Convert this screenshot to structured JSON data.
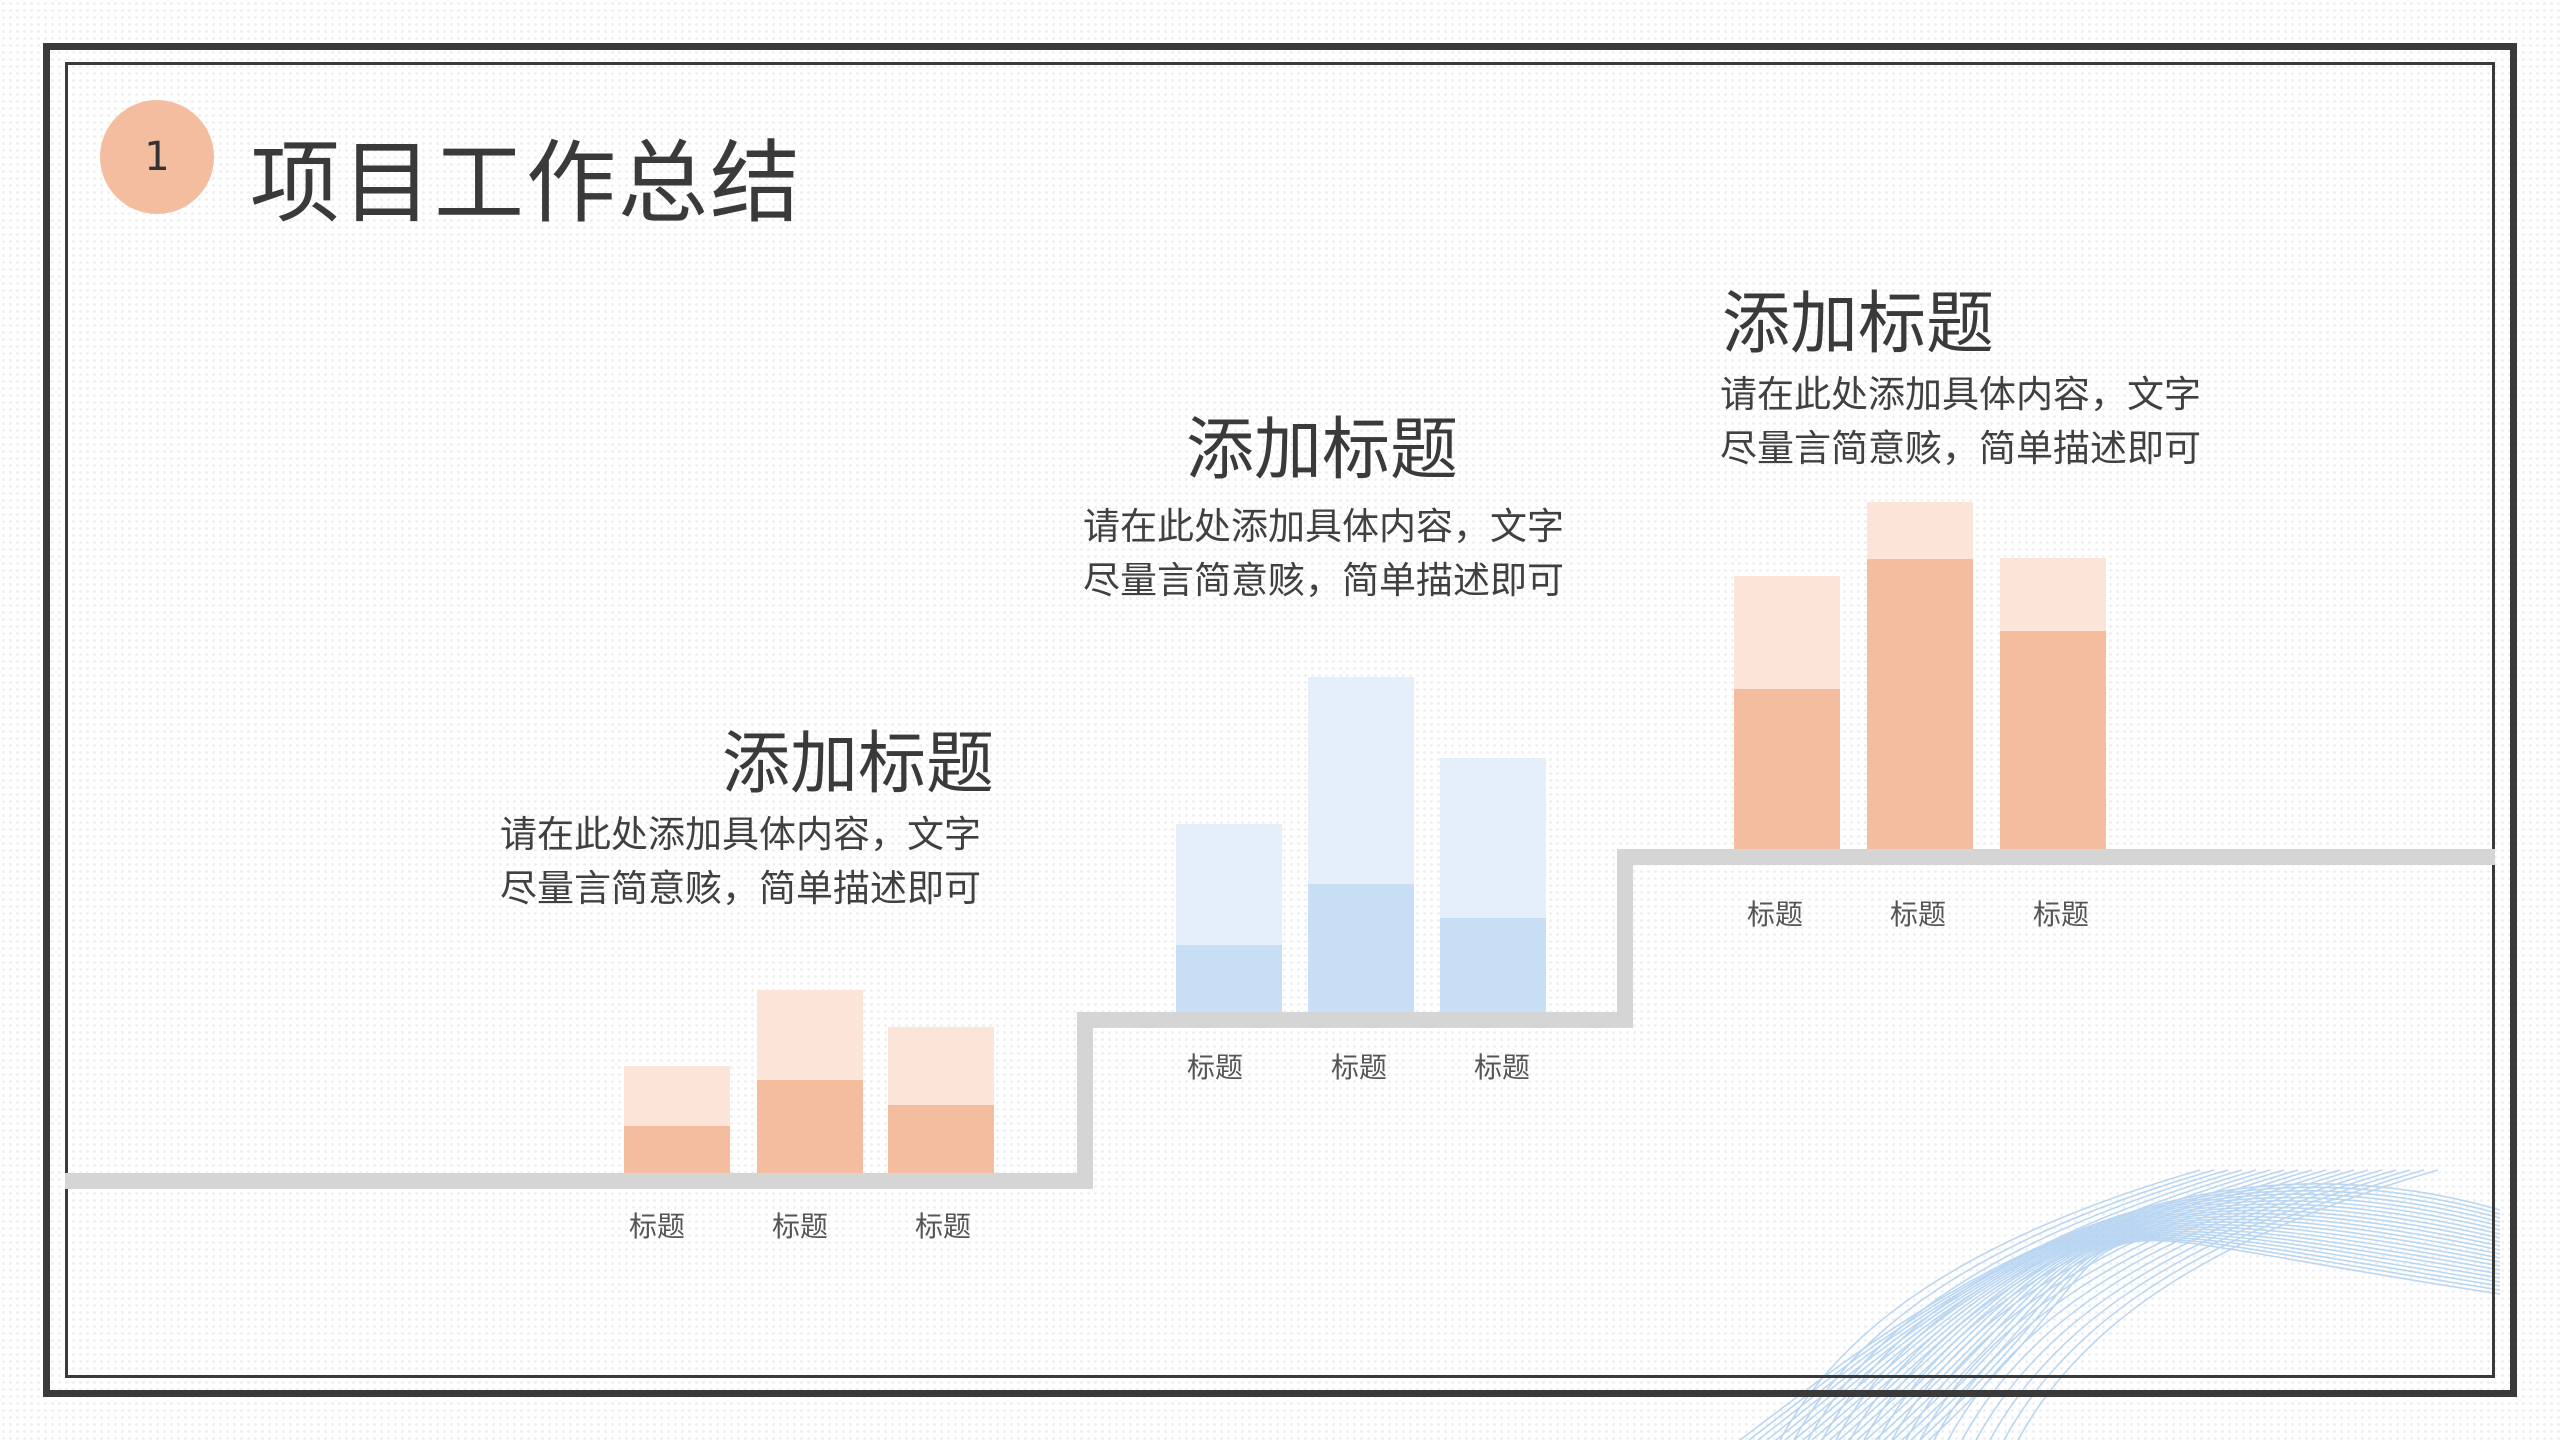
{
  "slide": {
    "number": "1",
    "title": "项目工作总结"
  },
  "colors": {
    "frame": "#3a3a3a",
    "step_line": "#d5d5d5",
    "orange_dark": "#f4bda0",
    "orange_light": "#fbe4d8",
    "blue_dark": "#c7def4",
    "blue_light": "#e4effa",
    "badge": "#f4bda0"
  },
  "blocks": [
    {
      "title": "添加标题",
      "desc_line1": "请在此处添加具体内容，文字",
      "desc_line2": "尽量言简意赅，简单描述即可",
      "bar_labels": [
        "标题",
        "标题",
        "标题"
      ],
      "palette": "orange"
    },
    {
      "title": "添加标题",
      "desc_line1": "请在此处添加具体内容，文字",
      "desc_line2": "尽量言简意赅，简单描述即可",
      "bar_labels": [
        "标题",
        "标题",
        "标题"
      ],
      "palette": "blue"
    },
    {
      "title": "添加标题",
      "desc_line1": "请在此处添加具体内容，文字",
      "desc_line2": "尽量言简意赅，简单描述即可",
      "bar_labels": [
        "标题",
        "标题",
        "标题"
      ],
      "palette": "orange"
    }
  ]
}
